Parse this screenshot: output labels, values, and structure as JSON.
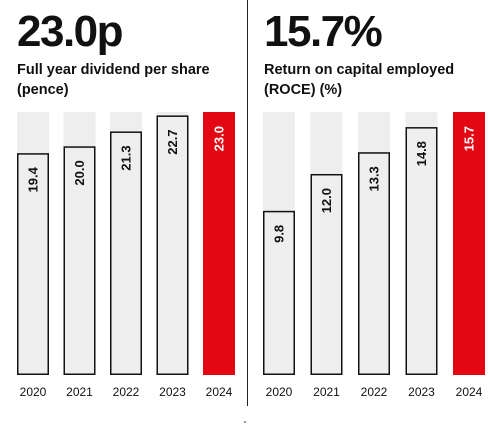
{
  "chart_data": [
    {
      "type": "bar",
      "headline": "23.0p",
      "title": "Full year dividend per share (pence)",
      "categories": [
        "2020",
        "2021",
        "2022",
        "2023",
        "2024"
      ],
      "values": [
        19.4,
        20.0,
        21.3,
        22.7,
        23.0
      ],
      "value_labels": [
        "19.4",
        "20.0",
        "21.3",
        "22.7",
        "23.0"
      ],
      "ylim": [
        0,
        23.0
      ],
      "highlight_index": 4,
      "colors": {
        "bar": "#eeeeee",
        "bar_outline": "#111111",
        "background_bar": "#eeeeee",
        "highlight": "#e30613"
      }
    },
    {
      "type": "bar",
      "headline": "15.7%",
      "title": "Return on capital employed (ROCE) (%)",
      "categories": [
        "2020",
        "2021",
        "2022",
        "2023",
        "2024"
      ],
      "values": [
        9.8,
        12.0,
        13.3,
        14.8,
        15.7
      ],
      "value_labels": [
        "9.8",
        "12.0",
        "13.3",
        "14.8",
        "15.7"
      ],
      "ylim": [
        0,
        15.7
      ],
      "highlight_index": 4,
      "colors": {
        "bar": "#eeeeee",
        "bar_outline": "#111111",
        "background_bar": "#eeeeee",
        "highlight": "#e30613"
      }
    }
  ]
}
